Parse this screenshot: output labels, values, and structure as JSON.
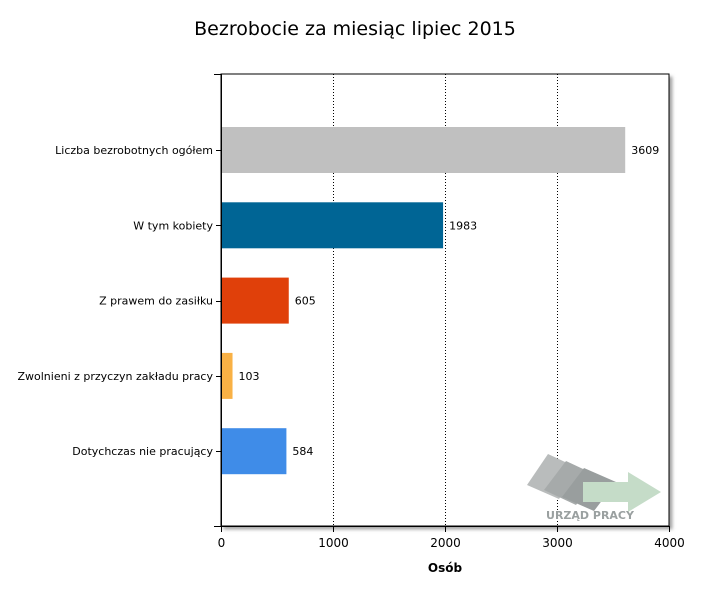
{
  "chart_data": {
    "type": "bar",
    "orientation": "horizontal",
    "title": "Bezrobocie za miesiąc lipiec 2015",
    "xlabel": "Osób",
    "ylabel": "",
    "xlim": [
      0,
      4000
    ],
    "xticks": [
      0,
      1000,
      2000,
      3000,
      4000
    ],
    "grid": "vertical dotted",
    "categories": [
      "Liczba bezrobotnych ogółem",
      "W tym kobiety",
      "Z prawem do zasiłku",
      "Zwolnieni z przyczyn zakładu pracy",
      "Dotychczas nie pracujący"
    ],
    "values": [
      3609,
      1983,
      605,
      103,
      584
    ],
    "colors": [
      "#c0c0c0",
      "#006595",
      "#e0400a",
      "#f9b145",
      "#3f8ce8"
    ]
  },
  "logo": {
    "text": "URZĄD PRACY"
  }
}
